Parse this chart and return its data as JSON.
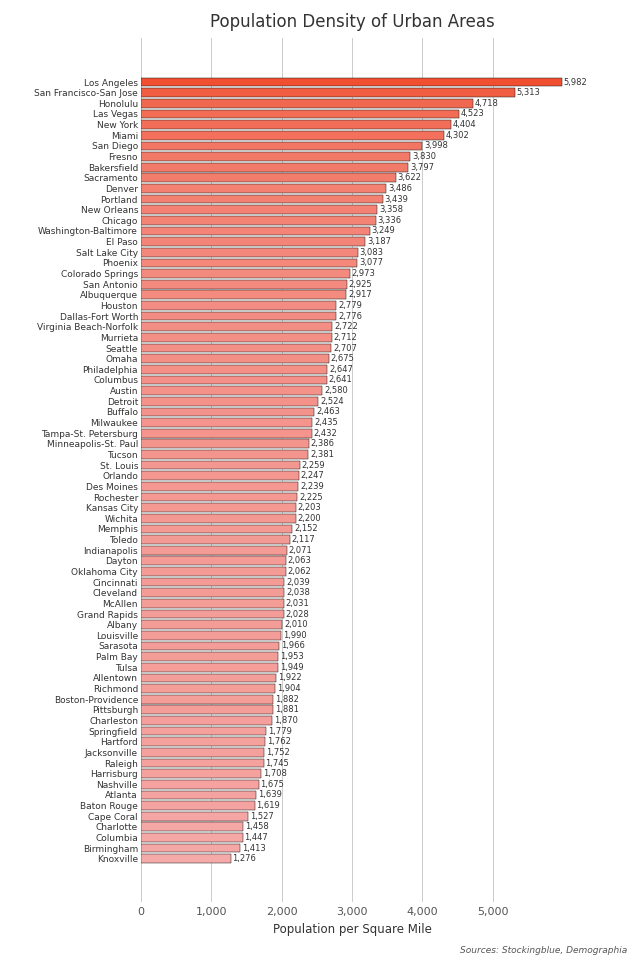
{
  "title": "Population Density of Urban Areas",
  "xlabel": "Population per Square Mile",
  "source": "Sources: Stockingblue, Demographia",
  "categories": [
    "Los Angeles",
    "San Francisco-San Jose",
    "Honolulu",
    "Las Vegas",
    "New York",
    "Miami",
    "San Diego",
    "Fresno",
    "Bakersfield",
    "Sacramento",
    "Denver",
    "Portland",
    "New Orleans",
    "Chicago",
    "Washington-Baltimore",
    "El Paso",
    "Salt Lake City",
    "Phoenix",
    "Colorado Springs",
    "San Antonio",
    "Albuquerque",
    "Houston",
    "Dallas-Fort Worth",
    "Virginia Beach-Norfolk",
    "Murrieta",
    "Seattle",
    "Omaha",
    "Philadelphia",
    "Columbus",
    "Austin",
    "Detroit",
    "Buffalo",
    "Milwaukee",
    "Tampa-St. Petersburg",
    "Minneapolis-St. Paul",
    "Tucson",
    "St. Louis",
    "Orlando",
    "Des Moines",
    "Rochester",
    "Kansas City",
    "Wichita",
    "Memphis",
    "Toledo",
    "Indianapolis",
    "Dayton",
    "Oklahoma City",
    "Cincinnati",
    "Cleveland",
    "McAllen",
    "Grand Rapids",
    "Albany",
    "Louisville",
    "Sarasota",
    "Palm Bay",
    "Tulsa",
    "Allentown",
    "Richmond",
    "Boston-Providence",
    "Pittsburgh",
    "Charleston",
    "Springfield",
    "Hartford",
    "Jacksonville",
    "Raleigh",
    "Harrisburg",
    "Nashville",
    "Atlanta",
    "Baton Rouge",
    "Cape Coral",
    "Charlotte",
    "Columbia",
    "Birmingham",
    "Knoxville"
  ],
  "values": [
    5982,
    5313,
    4718,
    4523,
    4404,
    4302,
    3998,
    3830,
    3797,
    3622,
    3486,
    3439,
    3358,
    3336,
    3249,
    3187,
    3083,
    3077,
    2973,
    2925,
    2917,
    2779,
    2776,
    2722,
    2712,
    2707,
    2675,
    2647,
    2641,
    2580,
    2524,
    2463,
    2435,
    2432,
    2386,
    2381,
    2259,
    2247,
    2239,
    2225,
    2203,
    2200,
    2152,
    2117,
    2071,
    2063,
    2062,
    2039,
    2038,
    2031,
    2028,
    2010,
    1990,
    1966,
    1953,
    1949,
    1922,
    1904,
    1882,
    1881,
    1870,
    1779,
    1762,
    1752,
    1745,
    1708,
    1675,
    1639,
    1619,
    1527,
    1458,
    1447,
    1413,
    1276
  ],
  "color_high": "#f05a3a",
  "color_mid": "#f28070",
  "color_low": "#f5aaaa",
  "threshold_high": 4000,
  "threshold_mid": 2500,
  "xlim": [
    0,
    6000
  ],
  "xticks": [
    0,
    1000,
    2000,
    3000,
    4000,
    5000
  ],
  "background_color": "#ffffff",
  "grid_color": "#cccccc",
  "title_fontsize": 12,
  "label_fontsize": 6.5,
  "value_fontsize": 6.0,
  "xlabel_fontsize": 8.5,
  "source_fontsize": 6.5
}
